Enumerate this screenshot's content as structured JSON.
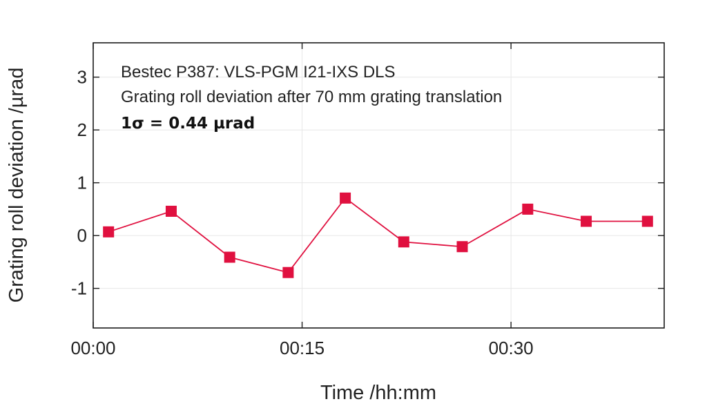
{
  "chart_data": {
    "type": "line",
    "title": "",
    "xlabel": "Time /hh:mm",
    "ylabel": "Grating roll deviation /µrad",
    "x_unit": "minutes",
    "xlim": [
      0,
      41
    ],
    "ylim": [
      -1.75,
      3.65
    ],
    "grid": true,
    "x_ticks": [
      {
        "value": 0,
        "label": "00:00"
      },
      {
        "value": 15,
        "label": "00:15"
      },
      {
        "value": 30,
        "label": "00:30"
      }
    ],
    "y_ticks": [
      {
        "value": -1,
        "label": "-1"
      },
      {
        "value": 0,
        "label": "0"
      },
      {
        "value": 1,
        "label": "1"
      },
      {
        "value": 2,
        "label": "2"
      },
      {
        "value": 3,
        "label": "3"
      }
    ],
    "series": [
      {
        "marker": "square",
        "color": "#e0103f",
        "points": [
          {
            "x": 1.1,
            "y": 0.07
          },
          {
            "x": 5.6,
            "y": 0.46
          },
          {
            "x": 9.8,
            "y": -0.41
          },
          {
            "x": 14.0,
            "y": -0.7
          },
          {
            "x": 18.1,
            "y": 0.71
          },
          {
            "x": 22.3,
            "y": -0.12
          },
          {
            "x": 26.5,
            "y": -0.21
          },
          {
            "x": 31.2,
            "y": 0.5
          },
          {
            "x": 35.4,
            "y": 0.27
          },
          {
            "x": 39.8,
            "y": 0.27
          }
        ]
      }
    ],
    "annotations": [
      "Bestec P387: VLS-PGM I21-IXS DLS",
      "Grating roll deviation after 70 mm grating translation",
      "1σ = 0.44 µrad"
    ]
  }
}
